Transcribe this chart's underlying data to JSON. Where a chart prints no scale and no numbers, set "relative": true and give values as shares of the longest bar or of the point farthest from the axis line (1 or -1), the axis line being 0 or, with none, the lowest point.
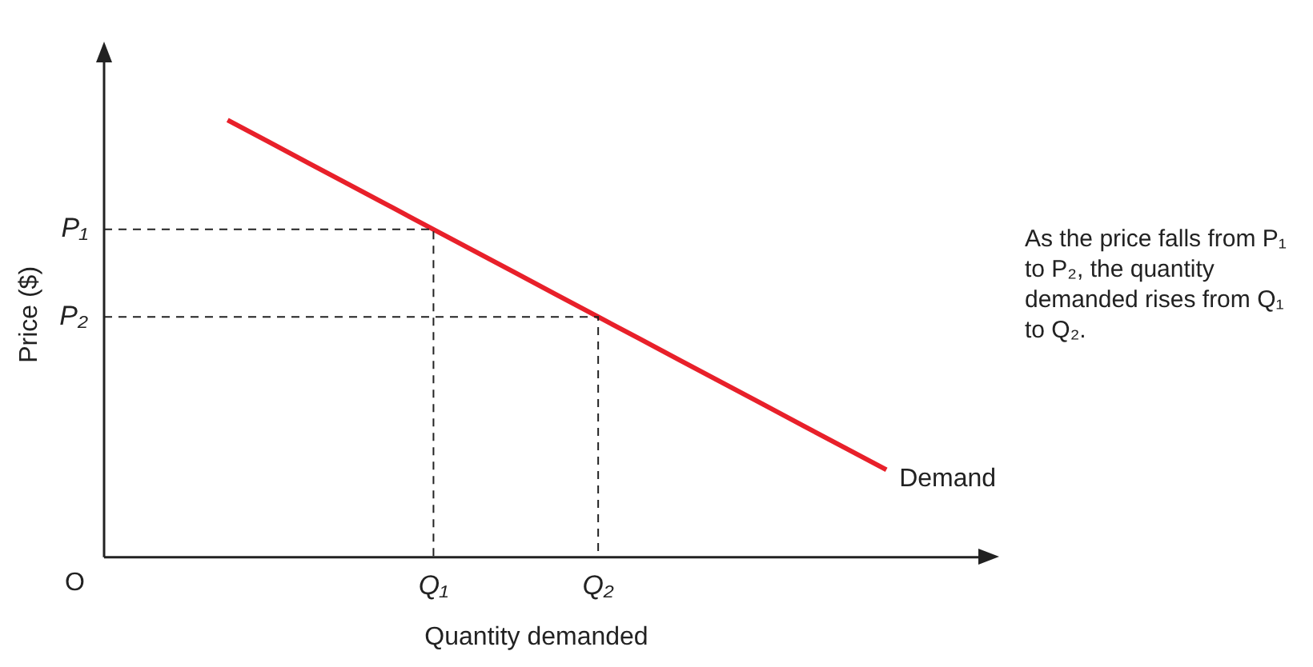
{
  "chart_data": {
    "type": "line",
    "relative": true,
    "xlabel": "Quantity demanded",
    "ylabel": "Price ($)",
    "categories": [
      null,
      null,
      null,
      null,
      null,
      null,
      null,
      null,
      "Q₁",
      null,
      null,
      null,
      "Q₂",
      null,
      null,
      null,
      null,
      null,
      null,
      null,
      null,
      null
    ],
    "series": [
      {
        "name": "Demand",
        "color": "#e8202a",
        "values": [
          null,
          null,
          null,
          1,
          0.95,
          0.9,
          0.85,
          0.8,
          0.75,
          0.7,
          0.65,
          0.6,
          0.55,
          0.5,
          0.45,
          0.4,
          0.35,
          0.3,
          0.25,
          0.2,
          null,
          null
        ]
      }
    ],
    "annotations": [
      "O",
      "P₁",
      "P₂",
      "As the price falls from P₁ to P₂, the quantity demanded rises from Q₁ to Q₂."
    ],
    "legend": false,
    "grid": false,
    "marker": "none",
    "line_style": "solid"
  }
}
